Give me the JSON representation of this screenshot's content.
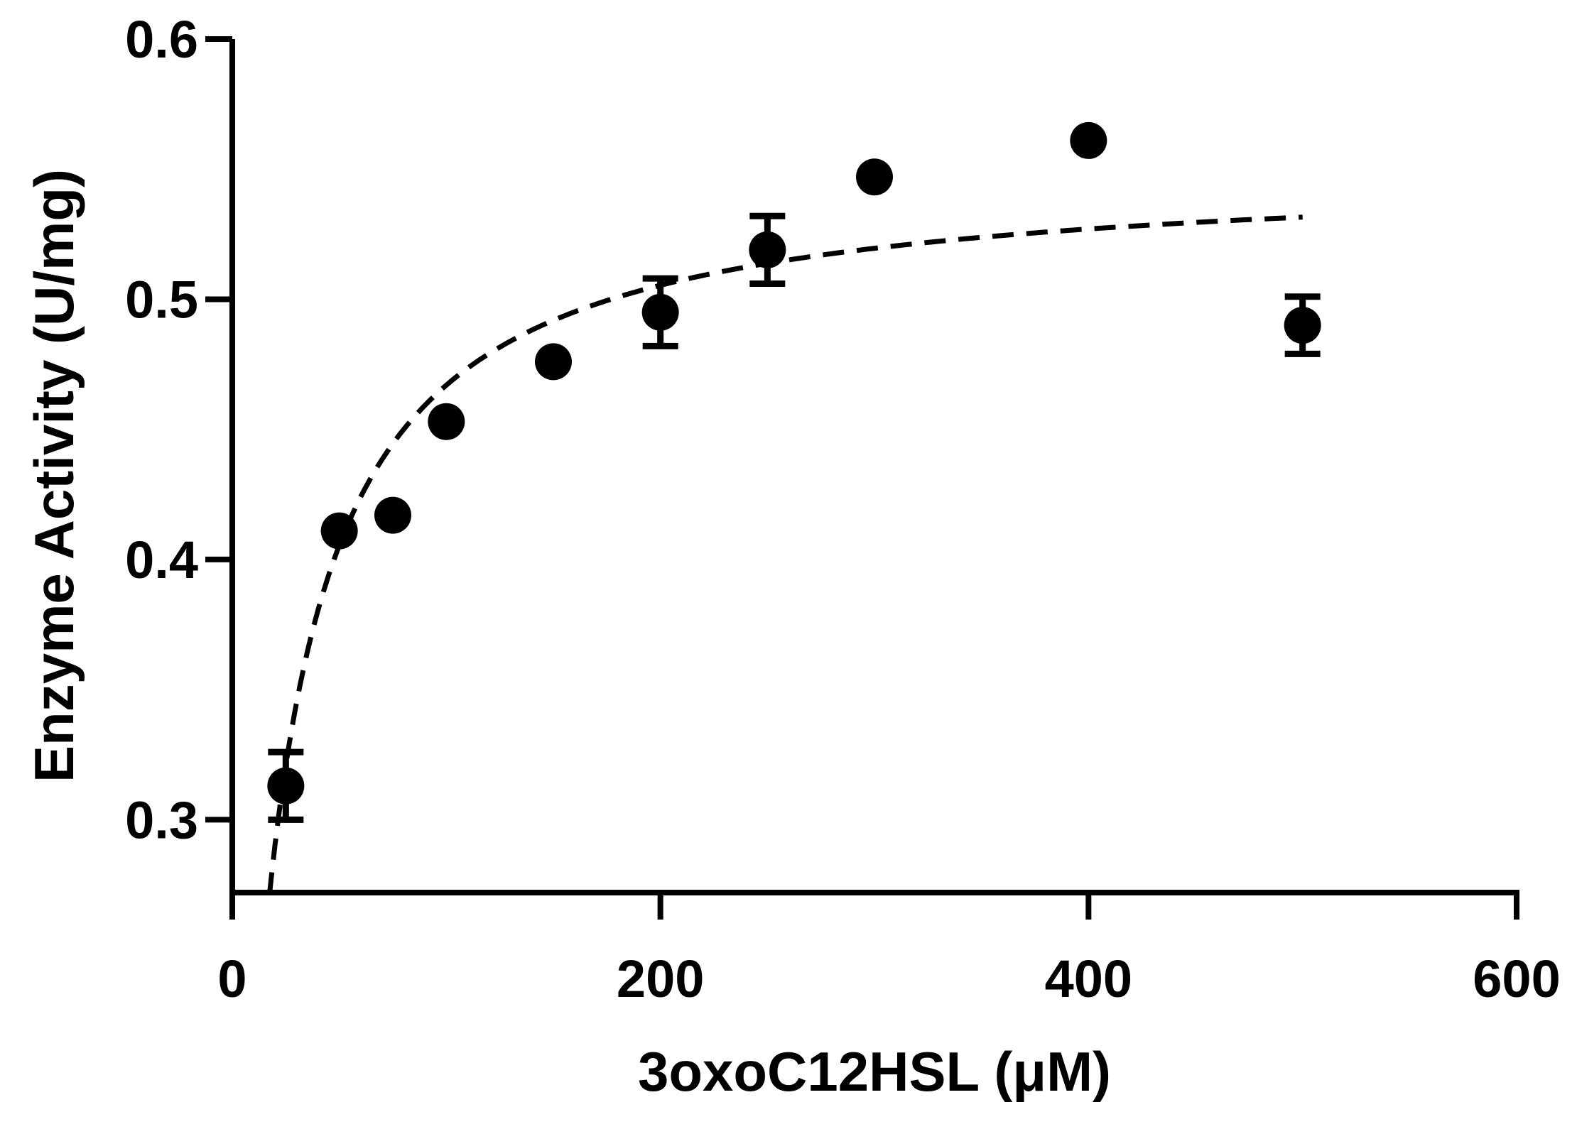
{
  "chart_data": {
    "type": "scatter",
    "title": "",
    "xlabel": "3oxoC12HSL (μM)",
    "ylabel": "Enzyme Activity (U/mg)",
    "xlim": [
      0,
      600
    ],
    "ylim": [
      0.272,
      0.6
    ],
    "x_ticks": [
      0,
      200,
      400,
      600
    ],
    "x_tick_labels": [
      "0",
      "200",
      "400",
      "600"
    ],
    "y_ticks": [
      0.3,
      0.4,
      0.5,
      0.6
    ],
    "y_tick_labels": [
      "0.3",
      "0.4",
      "0.5",
      "0.6"
    ],
    "grid": false,
    "series": [
      {
        "marker": "filled-circle",
        "color": "#000000",
        "points": [
          {
            "x": 25,
            "y": 0.313,
            "err": 0.013
          },
          {
            "x": 50,
            "y": 0.411,
            "err": 0
          },
          {
            "x": 75,
            "y": 0.417,
            "err": 0
          },
          {
            "x": 100,
            "y": 0.453,
            "err": 0
          },
          {
            "x": 150,
            "y": 0.476,
            "err": 0
          },
          {
            "x": 200,
            "y": 0.495,
            "err": 0.013
          },
          {
            "x": 250,
            "y": 0.519,
            "err": 0.013
          },
          {
            "x": 300,
            "y": 0.547,
            "err": 0
          },
          {
            "x": 400,
            "y": 0.561,
            "err": 0
          },
          {
            "x": 500,
            "y": 0.49,
            "err": 0.011
          }
        ]
      }
    ],
    "fit": {
      "style": "dashed",
      "model": "michaelis-menten",
      "vmax": 0.5506,
      "km": 17.9,
      "x_range": [
        17,
        500
      ]
    }
  }
}
